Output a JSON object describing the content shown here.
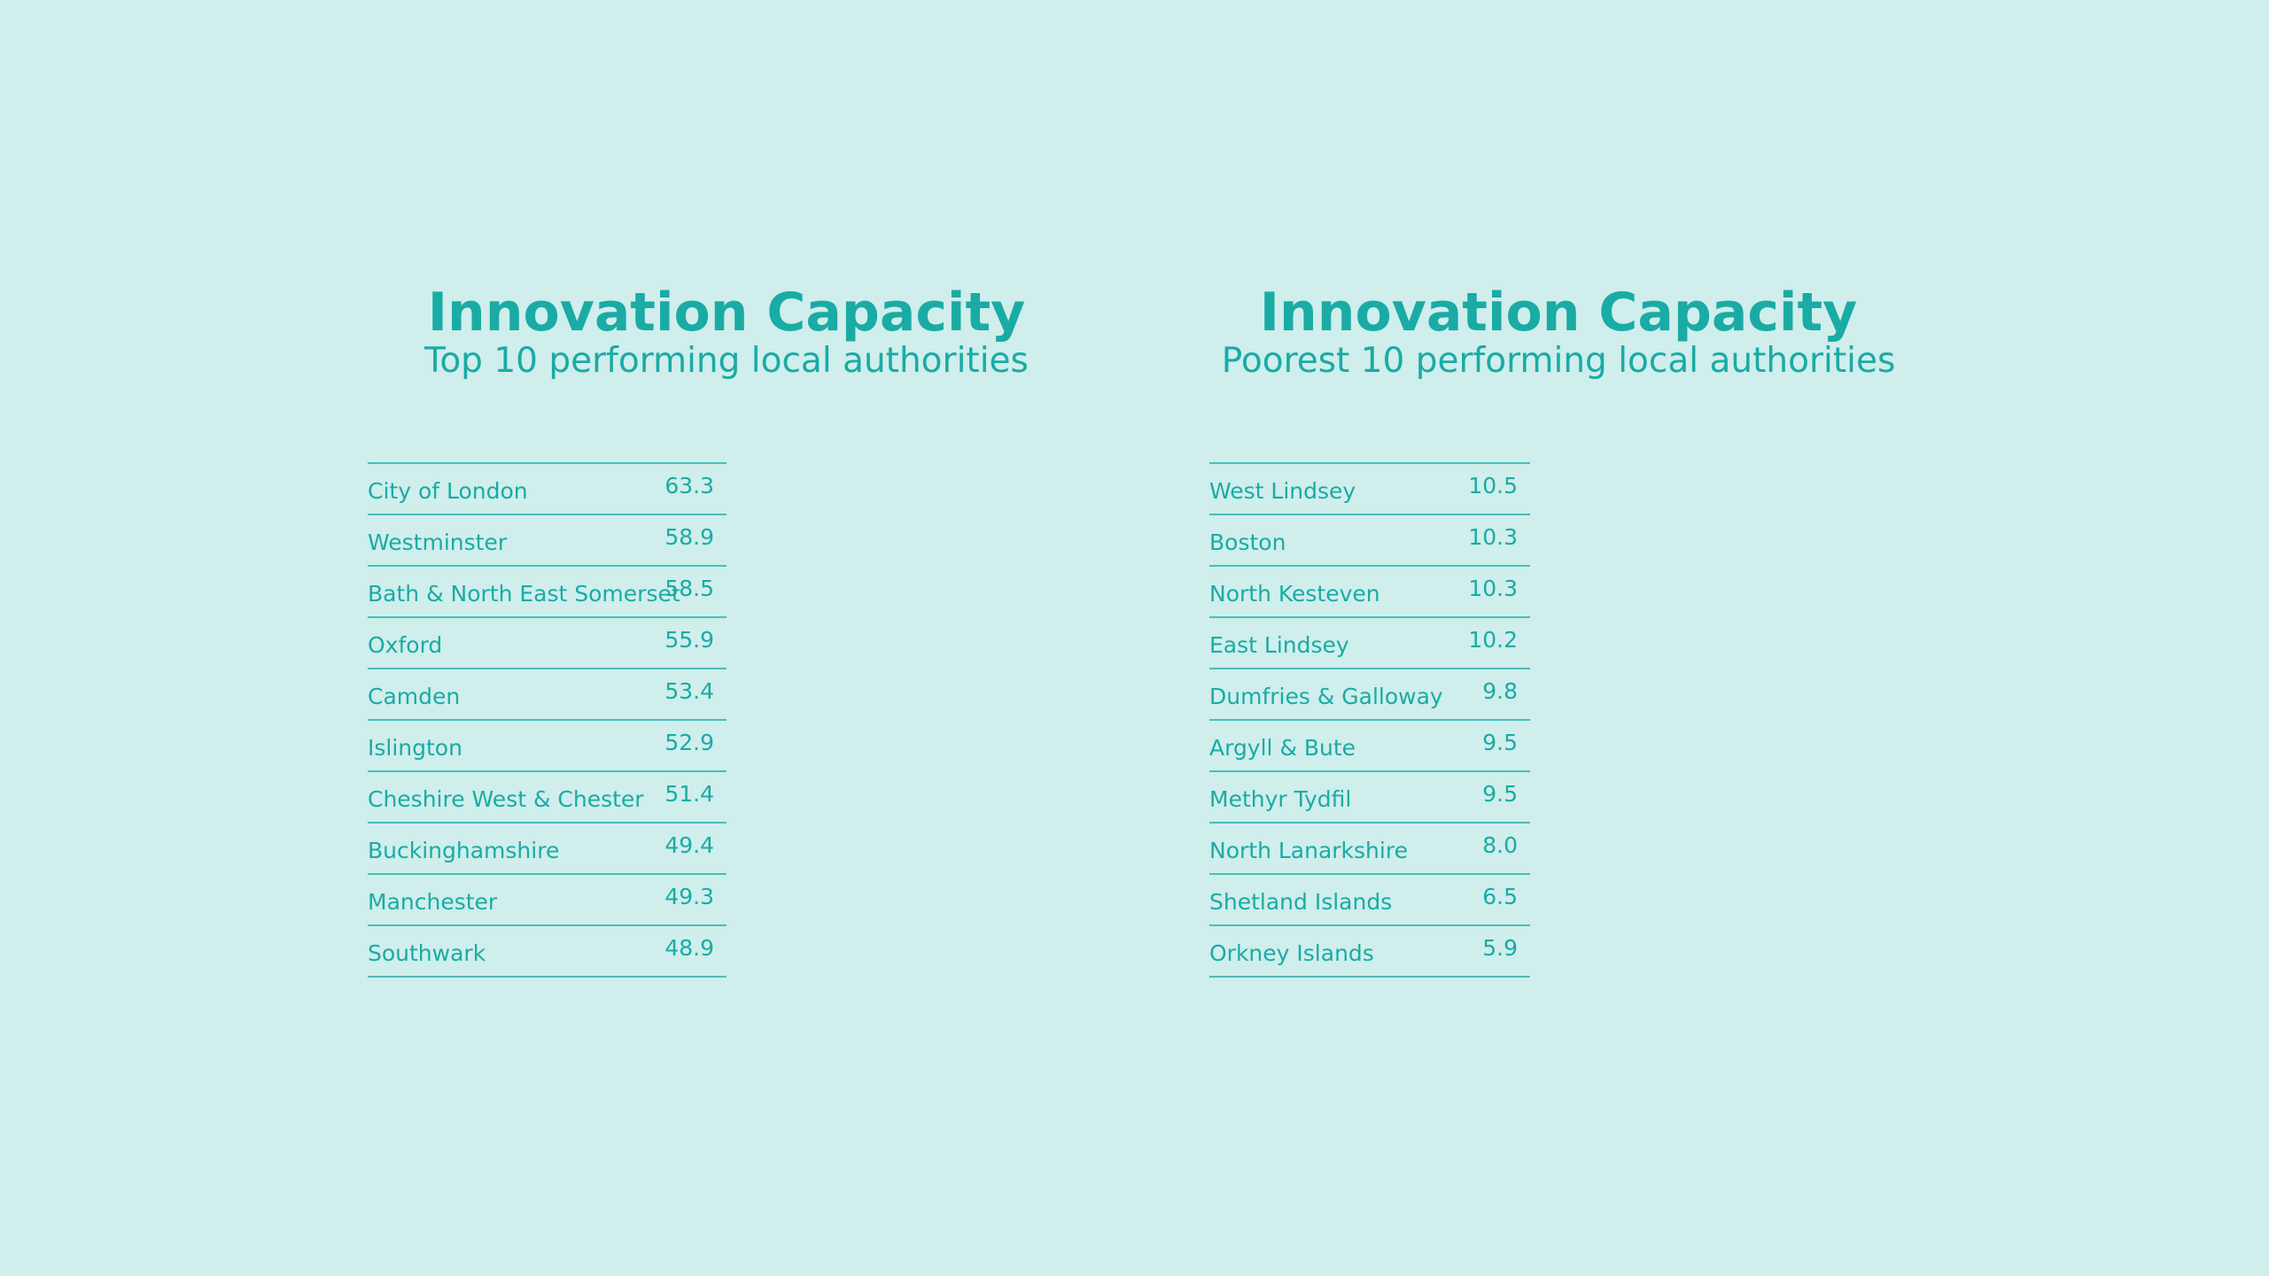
{
  "panels": [
    {
      "title": "Innovation Capacity",
      "subtitle": "Top 10 performing local authorities",
      "rows": [
        [
          "City of London",
          "63.3"
        ],
        [
          "Westminster",
          "58.9"
        ],
        [
          "Bath & North East Somerset",
          "58.5"
        ],
        [
          "Oxford",
          "55.9"
        ],
        [
          "Camden",
          "53.4"
        ],
        [
          "Islington",
          "52.9"
        ],
        [
          "Cheshire West & Chester",
          "51.4"
        ],
        [
          "Buckinghamshire",
          "49.4"
        ],
        [
          "Manchester",
          "49.3"
        ],
        [
          "Southwark",
          "48.9"
        ]
      ]
    },
    {
      "title": "Innovation Capacity",
      "subtitle": "Poorest 10 performing local authorities",
      "rows": [
        [
          "West Lindsey",
          "10.5"
        ],
        [
          "Boston",
          "10.3"
        ],
        [
          "North Kesteven",
          "10.3"
        ],
        [
          "East Lindsey",
          "10.2"
        ],
        [
          "Dumfries & Galloway",
          "9.8"
        ],
        [
          "Argyll & Bute",
          "9.5"
        ],
        [
          "Methyr Tydfil",
          "9.5"
        ],
        [
          "North Lanarkshire",
          "8.0"
        ],
        [
          "Shetland Islands",
          "6.5"
        ],
        [
          "Orkney Islands",
          "5.9"
        ]
      ]
    }
  ]
}
